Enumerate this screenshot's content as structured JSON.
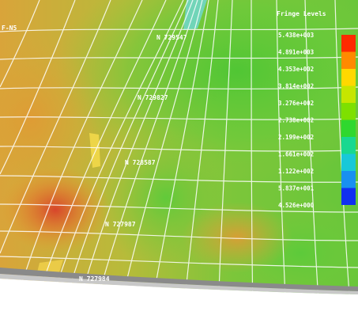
{
  "fringe": {
    "title": "Fringe Levels",
    "levels": [
      "5.438e+003",
      "4.891e+003",
      "4.353e+002",
      "3.814e+002",
      "3.276e+002",
      "2.738e+002",
      "2.199e+002",
      "1.661e+002",
      "1.122e+002",
      "5.837e+001",
      "4.526e+000"
    ],
    "colors": [
      "#ff2a00",
      "#ff8a00",
      "#ffd800",
      "#c6e600",
      "#7ee000",
      "#2fd82e",
      "#18d890",
      "#18c8d8",
      "#1890f0",
      "#1030f0"
    ]
  },
  "model": {
    "nodes": [
      "N 729547",
      "N 729827",
      "N 728587",
      "N 727987",
      "N 727984"
    ],
    "corner_label": "F-N5"
  }
}
